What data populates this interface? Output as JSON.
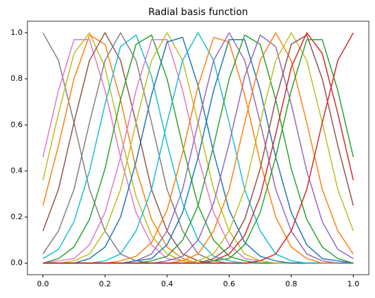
{
  "chart_data": {
    "type": "line",
    "title": "Radial basis function",
    "x": [
      0,
      0.05,
      0.1,
      0.15,
      0.2,
      0.25,
      0.3,
      0.35,
      0.4,
      0.45,
      0.5,
      0.55,
      0.6,
      0.65,
      0.7,
      0.75,
      0.8,
      0.85,
      0.9,
      0.95,
      1
    ],
    "xlim": [
      -0.05,
      1.05
    ],
    "ylim": [
      -0.05,
      1.05
    ],
    "xticks": [
      {
        "value": 0,
        "label": "0.0"
      },
      {
        "value": 0.2,
        "label": "0.2"
      },
      {
        "value": 0.4,
        "label": "0.4"
      },
      {
        "value": 0.6,
        "label": "0.6"
      },
      {
        "value": 0.8,
        "label": "0.8"
      },
      {
        "value": 1,
        "label": "1.0"
      }
    ],
    "yticks": [
      {
        "value": 0,
        "label": "0.0"
      },
      {
        "value": 0.2,
        "label": "0.2"
      },
      {
        "value": 0.4,
        "label": "0.4"
      },
      {
        "value": 0.6,
        "label": "0.6"
      },
      {
        "value": 0.8,
        "label": "0.8"
      },
      {
        "value": 1,
        "label": "1.0"
      }
    ],
    "grid": false,
    "series": [
      {
        "color": "#7f7f7f",
        "values": [
          1,
          0.88,
          0.61,
          0.32,
          0.14,
          0.04,
          0.01,
          0,
          0,
          0,
          0,
          0,
          0,
          0,
          0,
          0,
          0,
          0,
          0,
          0,
          0
        ]
      },
      {
        "color": "#e377c2",
        "values": [
          0.46,
          0.75,
          0.97,
          0.97,
          0.75,
          0.46,
          0.22,
          0.08,
          0.02,
          0.01,
          0,
          0,
          0,
          0,
          0,
          0,
          0,
          0,
          0,
          0,
          0
        ]
      },
      {
        "color": "#bcbd22",
        "values": [
          0.36,
          0.65,
          0.91,
          1,
          0.85,
          0.56,
          0.29,
          0.12,
          0.04,
          0.01,
          0,
          0,
          0,
          0,
          0,
          0,
          0,
          0,
          0,
          0,
          0
        ]
      },
      {
        "color": "#ff7f0e",
        "values": [
          0.25,
          0.51,
          0.8,
          0.99,
          0.95,
          0.71,
          0.41,
          0.19,
          0.07,
          0.02,
          0,
          0,
          0,
          0,
          0,
          0,
          0,
          0,
          0,
          0,
          0
        ]
      },
      {
        "color": "#8c564b",
        "values": [
          0.14,
          0.32,
          0.61,
          0.88,
          1,
          0.88,
          0.61,
          0.32,
          0.14,
          0.04,
          0.01,
          0,
          0,
          0,
          0,
          0,
          0,
          0,
          0,
          0,
          0
        ]
      },
      {
        "color": "#7f7f7f",
        "values": [
          0.04,
          0.14,
          0.32,
          0.61,
          0.88,
          1,
          0.88,
          0.61,
          0.32,
          0.14,
          0.04,
          0.01,
          0,
          0,
          0,
          0,
          0,
          0,
          0,
          0,
          0
        ]
      },
      {
        "color": "#17becf",
        "values": [
          0.02,
          0.06,
          0.18,
          0.4,
          0.69,
          0.94,
          0.99,
          0.81,
          0.52,
          0.26,
          0.1,
          0.03,
          0.01,
          0,
          0,
          0,
          0,
          0,
          0,
          0,
          0
        ]
      },
      {
        "color": "#2ca02c",
        "values": [
          0,
          0.02,
          0.07,
          0.19,
          0.41,
          0.71,
          0.95,
          0.99,
          0.8,
          0.51,
          0.25,
          0.1,
          0.03,
          0.01,
          0,
          0,
          0,
          0,
          0,
          0,
          0
        ]
      },
      {
        "color": "#e377c2",
        "values": [
          0,
          0.01,
          0.02,
          0.08,
          0.22,
          0.46,
          0.75,
          0.97,
          0.97,
          0.75,
          0.46,
          0.22,
          0.08,
          0.02,
          0.01,
          0,
          0,
          0,
          0,
          0,
          0
        ]
      },
      {
        "color": "#bcbd22",
        "values": [
          0,
          0,
          0.01,
          0.04,
          0.14,
          0.32,
          0.61,
          0.88,
          1,
          0.88,
          0.61,
          0.32,
          0.14,
          0.04,
          0.01,
          0,
          0,
          0,
          0,
          0,
          0
        ]
      },
      {
        "color": "#1f77b4",
        "values": [
          0,
          0,
          0,
          0.02,
          0.07,
          0.2,
          0.44,
          0.73,
          0.96,
          0.98,
          0.77,
          0.48,
          0.23,
          0.09,
          0.03,
          0.01,
          0,
          0,
          0,
          0,
          0
        ]
      },
      {
        "color": "#17becf",
        "values": [
          0,
          0,
          0,
          0,
          0.01,
          0.04,
          0.14,
          0.32,
          0.61,
          0.88,
          1,
          0.88,
          0.61,
          0.32,
          0.14,
          0.04,
          0.01,
          0,
          0,
          0,
          0
        ]
      },
      {
        "color": "#ff7f0e",
        "values": [
          0,
          0,
          0,
          0,
          0,
          0.01,
          0.03,
          0.09,
          0.23,
          0.48,
          0.77,
          0.98,
          0.96,
          0.73,
          0.44,
          0.2,
          0.07,
          0.02,
          0,
          0,
          0
        ]
      },
      {
        "color": "#9467bd",
        "values": [
          0,
          0,
          0,
          0,
          0,
          0,
          0.01,
          0.04,
          0.14,
          0.32,
          0.61,
          0.88,
          1,
          0.88,
          0.61,
          0.32,
          0.14,
          0.04,
          0.01,
          0,
          0
        ]
      },
      {
        "color": "#1f77b4",
        "values": [
          0,
          0,
          0,
          0,
          0,
          0,
          0.01,
          0.02,
          0.08,
          0.22,
          0.46,
          0.75,
          0.97,
          0.97,
          0.75,
          0.46,
          0.22,
          0.08,
          0.02,
          0.01,
          0
        ]
      },
      {
        "color": "#2ca02c",
        "values": [
          0,
          0,
          0,
          0,
          0,
          0,
          0,
          0.01,
          0.03,
          0.1,
          0.25,
          0.51,
          0.8,
          0.99,
          0.95,
          0.71,
          0.41,
          0.19,
          0.07,
          0.02,
          0
        ]
      },
      {
        "color": "#9467bd",
        "values": [
          0,
          0,
          0,
          0,
          0,
          0,
          0,
          0,
          0.01,
          0.03,
          0.1,
          0.26,
          0.52,
          0.81,
          0.99,
          0.94,
          0.69,
          0.4,
          0.18,
          0.06,
          0.02
        ]
      },
      {
        "color": "#ff7f0e",
        "values": [
          0,
          0,
          0,
          0,
          0,
          0,
          0,
          0,
          0,
          0.01,
          0.04,
          0.14,
          0.32,
          0.61,
          0.88,
          1,
          0.88,
          0.61,
          0.32,
          0.14,
          0.04
        ]
      },
      {
        "color": "#bcbd22",
        "values": [
          0,
          0,
          0,
          0,
          0,
          0,
          0,
          0,
          0,
          0,
          0.01,
          0.04,
          0.14,
          0.32,
          0.61,
          0.88,
          1,
          0.88,
          0.61,
          0.32,
          0.14
        ]
      },
      {
        "color": "#8c564b",
        "values": [
          0,
          0,
          0,
          0,
          0,
          0,
          0,
          0,
          0,
          0,
          0,
          0.02,
          0.07,
          0.19,
          0.41,
          0.71,
          0.95,
          0.99,
          0.8,
          0.51,
          0.25
        ]
      },
      {
        "color": "#d62728",
        "values": [
          0,
          0,
          0,
          0,
          0,
          0,
          0,
          0,
          0,
          0,
          0,
          0.01,
          0.04,
          0.12,
          0.29,
          0.56,
          0.85,
          1,
          0.91,
          0.65,
          0.36
        ]
      },
      {
        "color": "#2ca02c",
        "values": [
          0,
          0,
          0,
          0,
          0,
          0,
          0,
          0,
          0,
          0,
          0,
          0.01,
          0.02,
          0.08,
          0.22,
          0.46,
          0.75,
          0.97,
          0.97,
          0.75,
          0.46
        ]
      },
      {
        "color": "#d62728",
        "values": [
          0,
          0,
          0,
          0,
          0,
          0,
          0,
          0,
          0,
          0,
          0,
          0,
          0,
          0,
          0.01,
          0.04,
          0.14,
          0.32,
          0.61,
          0.88,
          1
        ]
      }
    ]
  }
}
